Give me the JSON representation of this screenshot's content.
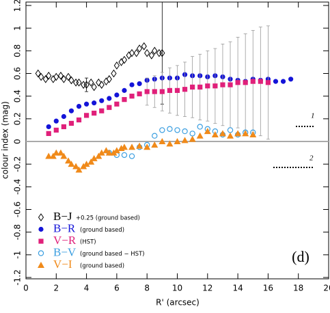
{
  "chart_data": {
    "type": "scatter",
    "xlabel": "R' (arcsec)",
    "ylabel": "colour index (mag)",
    "xlim": [
      0,
      20
    ],
    "xticks": [
      0,
      2,
      4,
      6,
      8,
      10,
      12,
      14,
      16,
      18,
      20
    ],
    "ylim": [
      -1.2,
      1.2
    ],
    "yticks": [
      1.2,
      1,
      0.8,
      0.6,
      0.4,
      0.2,
      0,
      -0.2,
      -0.4,
      -0.6,
      -0.8,
      -1,
      -1.2
    ],
    "hline": 0,
    "hline_color": "#aaaaaa",
    "annotations": [
      "(d)",
      "1",
      "2"
    ],
    "series": [
      {
        "name": "B−J",
        "note": "+0.25 (ground based)",
        "marker": "diamond-open",
        "color": "#000000",
        "x": [
          0.8,
          1.0,
          1.3,
          1.5,
          1.8,
          2.0,
          2.3,
          2.5,
          2.8,
          3.0,
          3.3,
          3.5,
          3.8,
          4.0,
          4.3,
          4.5,
          4.8,
          5.0,
          5.3,
          5.5,
          5.8,
          6.0,
          6.3,
          6.5,
          6.8,
          7.0,
          7.3,
          7.5,
          7.8,
          8.0,
          8.3,
          8.5,
          8.8,
          9.0
        ],
        "values": [
          0.6,
          0.57,
          0.55,
          0.58,
          0.55,
          0.57,
          0.58,
          0.55,
          0.57,
          0.54,
          0.52,
          0.52,
          0.5,
          0.5,
          0.52,
          0.48,
          0.52,
          0.5,
          0.53,
          0.55,
          0.6,
          0.67,
          0.7,
          0.72,
          0.76,
          0.78,
          0.78,
          0.82,
          0.84,
          0.78,
          0.76,
          0.8,
          0.78,
          0.78
        ],
        "errors": [
          null,
          null,
          null,
          null,
          null,
          null,
          null,
          null,
          null,
          null,
          null,
          null,
          null,
          0.06,
          null,
          null,
          null,
          null,
          null,
          null,
          null,
          null,
          null,
          null,
          null,
          null,
          null,
          null,
          null,
          null,
          null,
          null,
          null,
          0.45
        ]
      },
      {
        "name": "B−R",
        "note": "(ground based)",
        "marker": "circle",
        "color": "#1414d8",
        "x": [
          1.5,
          2,
          2.5,
          3,
          3.5,
          4,
          4.5,
          5,
          5.5,
          6,
          6.5,
          7,
          7.5,
          8,
          8.5,
          9,
          9.5,
          10,
          10.5,
          11,
          11.5,
          12,
          12.5,
          13,
          13.5,
          14,
          14.5,
          15,
          15.5,
          16,
          16.5,
          17,
          17.5
        ],
        "values": [
          0.13,
          0.18,
          0.22,
          0.27,
          0.31,
          0.33,
          0.34,
          0.36,
          0.38,
          0.41,
          0.45,
          0.5,
          0.51,
          0.54,
          0.55,
          0.56,
          0.56,
          0.56,
          0.59,
          0.58,
          0.58,
          0.57,
          0.58,
          0.57,
          0.55,
          0.54,
          0.53,
          0.55,
          0.54,
          0.55,
          0.53,
          0.53,
          0.55
        ]
      },
      {
        "name": "V−R",
        "note": "(HST)",
        "marker": "square",
        "color": "#e0207a",
        "x": [
          1.5,
          2,
          2.5,
          3,
          3.5,
          4,
          4.5,
          5,
          5.5,
          6,
          6.5,
          7,
          7.5,
          8,
          8.5,
          9,
          9.5,
          10,
          10.5,
          11,
          11.5,
          12,
          12.5,
          13,
          13.5,
          14,
          14.5,
          15,
          15.5,
          16
        ],
        "values": [
          0.07,
          0.1,
          0.13,
          0.16,
          0.19,
          0.23,
          0.25,
          0.27,
          0.3,
          0.33,
          0.37,
          0.4,
          0.42,
          0.44,
          0.44,
          0.44,
          0.45,
          0.45,
          0.46,
          0.48,
          0.48,
          0.49,
          0.49,
          0.5,
          0.5,
          0.52,
          0.52,
          0.53,
          0.53,
          0.52
        ],
        "errors": [
          null,
          null,
          null,
          null,
          null,
          null,
          null,
          null,
          null,
          null,
          null,
          null,
          null,
          0.12,
          0.14,
          0.17,
          0.2,
          0.22,
          0.24,
          0.27,
          0.29,
          0.31,
          0.33,
          0.36,
          0.38,
          0.4,
          0.43,
          0.45,
          0.48,
          0.5
        ]
      },
      {
        "name": "B−V",
        "note": "(ground based − HST)",
        "marker": "circle-open",
        "color": "#3a9ee0",
        "x": [
          5.5,
          6,
          6.5,
          7,
          7.5,
          8,
          8.5,
          9,
          9.5,
          10,
          10.5,
          11,
          11.5,
          12,
          12.5,
          13,
          13.5,
          14,
          14.5,
          15
        ],
        "values": [
          -0.1,
          -0.12,
          -0.12,
          -0.13,
          -0.05,
          -0.03,
          0.05,
          0.1,
          0.11,
          0.1,
          0.09,
          0.07,
          0.13,
          0.11,
          0.09,
          0.06,
          0.1,
          0.06,
          0.08,
          0.08
        ]
      },
      {
        "name": "V−I",
        "note": "(ground based)",
        "marker": "triangle",
        "color": "#f08a1a",
        "x": [
          1.5,
          1.8,
          2,
          2.3,
          2.5,
          2.8,
          3,
          3.3,
          3.5,
          3.8,
          4,
          4.3,
          4.5,
          4.8,
          5,
          5.3,
          5.5,
          5.8,
          6,
          6.3,
          6.5,
          7,
          7.5,
          8,
          8.5,
          9,
          9.5,
          10,
          10.5,
          11,
          11.5,
          12,
          12.5,
          13,
          13.5,
          14,
          14.5,
          15
        ],
        "values": [
          -0.13,
          -0.13,
          -0.1,
          -0.1,
          -0.13,
          -0.17,
          -0.2,
          -0.22,
          -0.25,
          -0.22,
          -0.2,
          -0.18,
          -0.15,
          -0.13,
          -0.1,
          -0.08,
          -0.1,
          -0.1,
          -0.08,
          -0.06,
          -0.05,
          -0.05,
          -0.04,
          -0.05,
          -0.03,
          0.0,
          -0.02,
          0.0,
          0.01,
          0.02,
          0.05,
          0.09,
          0.06,
          0.07,
          0.05,
          0.07,
          0.07,
          0.06
        ]
      }
    ]
  }
}
